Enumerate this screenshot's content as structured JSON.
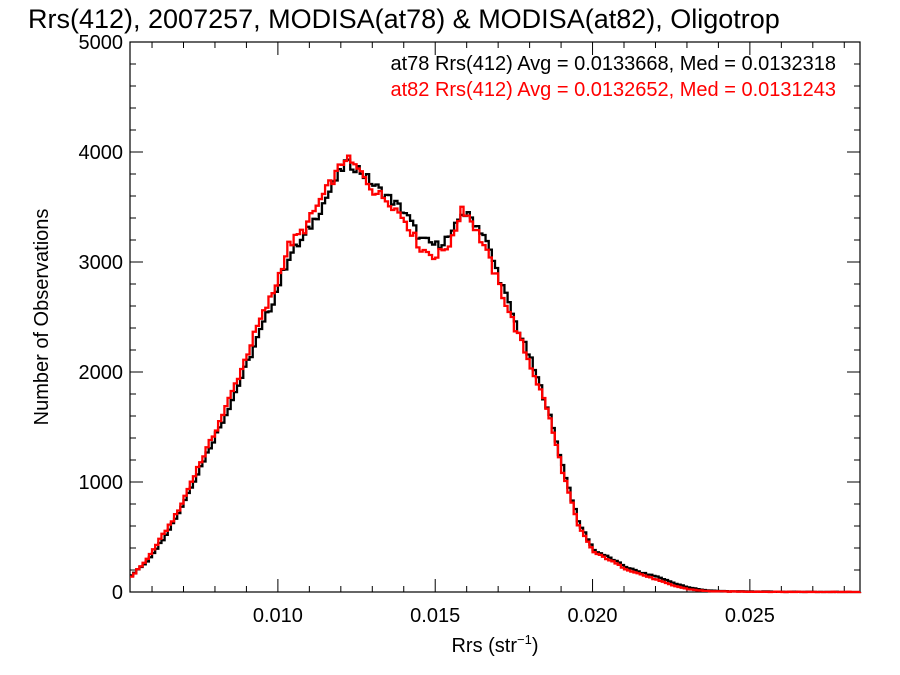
{
  "chart_data": {
    "type": "line",
    "title": "Rrs(412), 2007257, MODISA(at78) & MODISA(at82), Oligotrop",
    "xlabel_main": "Rrs (str",
    "xlabel_sup": "−1",
    "xlabel_close": ")",
    "ylabel": "Number of Observations",
    "xlim": [
      0.0053,
      0.0285
    ],
    "ylim": [
      0,
      5000
    ],
    "x_ticks": [
      0.01,
      0.015,
      0.02,
      0.025
    ],
    "x_tick_labels": [
      "0.010",
      "0.015",
      "0.020",
      "0.025"
    ],
    "y_ticks": [
      0,
      1000,
      2000,
      3000,
      4000,
      5000
    ],
    "y_tick_labels": [
      "0",
      "1000",
      "2000",
      "3000",
      "4000",
      "5000"
    ],
    "grid": false,
    "legend_placement": "top-right",
    "annotations": [
      "at78 Rrs(412) Avg = 0.0133668, Med = 0.0132318",
      "at82 Rrs(412) Avg = 0.0132652, Med = 0.0131243"
    ],
    "series": [
      {
        "color": "#000000",
        "x": [
          0.0053,
          0.0058,
          0.0063,
          0.0068,
          0.0073,
          0.0078,
          0.0083,
          0.0088,
          0.0093,
          0.0098,
          0.0103,
          0.0108,
          0.0113,
          0.0118,
          0.0121,
          0.0125,
          0.013,
          0.0135,
          0.014,
          0.0145,
          0.015,
          0.0155,
          0.0158,
          0.0161,
          0.0165,
          0.017,
          0.0175,
          0.018,
          0.0185,
          0.019,
          0.0195,
          0.02,
          0.0205,
          0.021,
          0.0215,
          0.022,
          0.0225,
          0.023,
          0.0235,
          0.024,
          0.025,
          0.026,
          0.0285
        ],
        "y": [
          150,
          280,
          480,
          720,
          1020,
          1320,
          1620,
          1950,
          2300,
          2650,
          3050,
          3230,
          3480,
          3750,
          3900,
          3850,
          3700,
          3580,
          3450,
          3200,
          3150,
          3250,
          3450,
          3400,
          3250,
          2850,
          2450,
          2100,
          1700,
          1150,
          640,
          380,
          310,
          230,
          175,
          140,
          85,
          40,
          18,
          8,
          4,
          2,
          0
        ]
      },
      {
        "color": "#ff0000",
        "x": [
          0.0053,
          0.0058,
          0.0063,
          0.0068,
          0.0073,
          0.0078,
          0.0083,
          0.0088,
          0.0093,
          0.0098,
          0.0103,
          0.0108,
          0.0113,
          0.0118,
          0.0121,
          0.0125,
          0.013,
          0.0135,
          0.014,
          0.0145,
          0.015,
          0.0155,
          0.0158,
          0.0161,
          0.0165,
          0.017,
          0.0175,
          0.018,
          0.0185,
          0.019,
          0.0195,
          0.02,
          0.0205,
          0.021,
          0.0215,
          0.022,
          0.0225,
          0.023,
          0.0235,
          0.024,
          0.025,
          0.026,
          0.0285
        ],
        "y": [
          140,
          300,
          520,
          740,
          1070,
          1360,
          1680,
          2030,
          2410,
          2720,
          3150,
          3300,
          3560,
          3800,
          3950,
          3840,
          3650,
          3550,
          3380,
          3120,
          3050,
          3200,
          3500,
          3380,
          3150,
          2780,
          2400,
          2050,
          1680,
          1100,
          600,
          360,
          290,
          210,
          160,
          110,
          60,
          25,
          10,
          5,
          3,
          1,
          0
        ]
      }
    ]
  }
}
